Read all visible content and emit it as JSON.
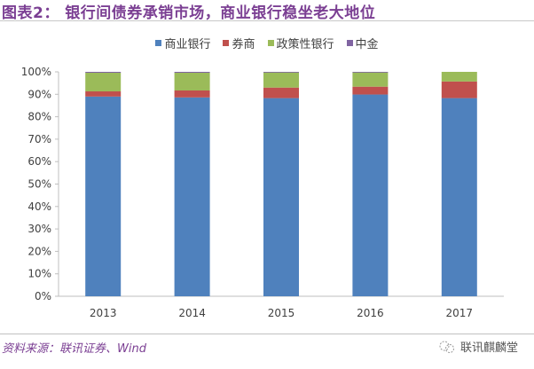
{
  "title": "图表2：  银行间债券承销市场，商业银行稳坐老大地位",
  "source": "资料来源：联讯证券、Wind",
  "brand": "联讯麒麟堂",
  "chart_data": {
    "type": "bar",
    "stacked": true,
    "percent_stacked": true,
    "categories": [
      "2013",
      "2014",
      "2015",
      "2016",
      "2017"
    ],
    "series": [
      {
        "name": "商业银行",
        "color": "#4f81bd",
        "values": [
          89.0,
          88.6,
          88.3,
          89.9,
          88.3
        ]
      },
      {
        "name": "券商",
        "color": "#c0504d",
        "values": [
          2.3,
          3.1,
          4.7,
          3.5,
          7.4
        ]
      },
      {
        "name": "政策性银行",
        "color": "#9bbb59",
        "values": [
          8.3,
          7.9,
          6.8,
          6.4,
          4.3
        ]
      },
      {
        "name": "中金",
        "color": "#8064a2",
        "values": [
          0.4,
          0.4,
          0.2,
          0.2,
          0.0
        ]
      }
    ],
    "yticks": [
      "0%",
      "10%",
      "20%",
      "30%",
      "40%",
      "50%",
      "60%",
      "70%",
      "80%",
      "90%",
      "100%"
    ],
    "ylim": [
      0,
      100
    ],
    "grid": false,
    "legend": "top"
  }
}
